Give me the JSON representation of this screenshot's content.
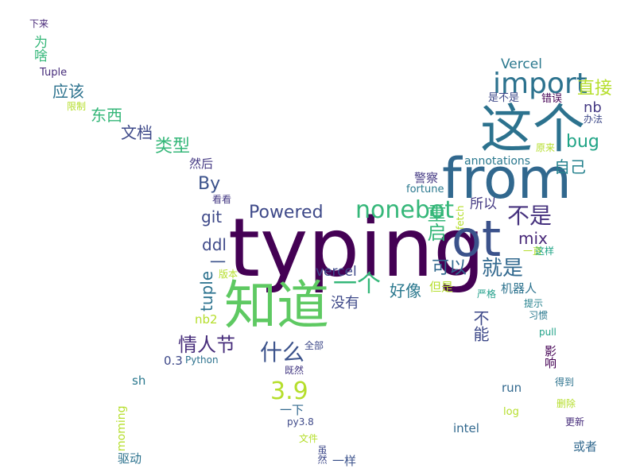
{
  "words": {
    "typing": "typing",
    "zhidao": "知道",
    "from": "from",
    "zhege": "这个",
    "ot": "ot",
    "import": "import",
    "nonebot": "nonebot",
    "chongqi": "重启",
    "bushi": "不是",
    "yige": "一个",
    "jiushi": "就是",
    "keyi": "可以",
    "shenme": "什么",
    "v39": "3.9",
    "qingrenjie": "情人节",
    "powered": "Powered",
    "by": "By",
    "git": "git",
    "ddl": "ddl",
    "tuple_lower": "tuple",
    "zhijie": "直接",
    "bug": "bug",
    "ziji": "自己",
    "nb": "nb",
    "vercel_cap": "Vercel",
    "vercel": "vercel",
    "mix": "mix",
    "haoxiang": "好像",
    "meiyou": "没有",
    "suoyi": "所以",
    "buneng": "不能",
    "leixing": "类型",
    "wendang": "文档",
    "dongxi": "东西",
    "yinggai": "应该",
    "weisha": "为啥",
    "xialai": "下来",
    "tuple_cap": "Tuple",
    "xianzhi": "限制",
    "ranhou": "然后",
    "kankan": "看看",
    "annotations": "annotations",
    "jingcha": "警察",
    "fortune": "fortune",
    "fetch": "fetch",
    "shibushi": "是不是",
    "cuowu": "错误",
    "banfa": "办法",
    "yuanlai": "原来",
    "yizhi": "一直",
    "zhege_small": "这样",
    "danshi": "但是",
    "jiqiren": "机器人",
    "yange": "严格",
    "tishi": "提示",
    "xiguan": "习惯",
    "pull": "pull",
    "yingxiang": "影响",
    "dedao": "得到",
    "shanchu": "删除",
    "gengxin": "更新",
    "huozhe": "或者",
    "log": "log",
    "run": "run",
    "intel": "intel",
    "nb2": "nb2",
    "v03": "0.3",
    "python": "Python",
    "banben": "版本",
    "quanbu": "全部",
    "jiran": "既然",
    "sh": "sh",
    "yixia": "一下",
    "py38": "py3.8",
    "wenjian": "文件",
    "suiran": "虽然",
    "yiyang": "一样",
    "moming": "moming",
    "qudong": "驱动",
    "dash": "一"
  }
}
